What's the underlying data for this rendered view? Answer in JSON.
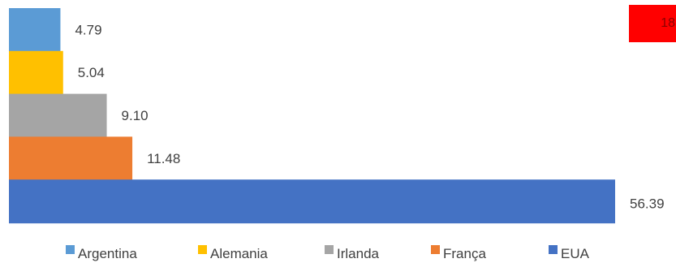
{
  "chart_data": {
    "type": "bar",
    "orientation": "horizontal",
    "categories": [
      "Argentina",
      "Alemania",
      "Irlanda",
      "França",
      "EUA"
    ],
    "values": [
      4.79,
      5.04,
      9.1,
      11.48,
      56.39
    ],
    "value_labels": [
      "4.79",
      "5.04",
      "9.10",
      "11.48",
      "56.39"
    ],
    "colors": [
      "#5b9bd5",
      "#ffc000",
      "#a5a5a5",
      "#ed7d31",
      "#4472c4"
    ],
    "xlim": [
      0,
      56.39
    ],
    "grid": false,
    "legend_position": "bottom"
  },
  "badge": {
    "text": "18",
    "color": "#ff0000"
  }
}
